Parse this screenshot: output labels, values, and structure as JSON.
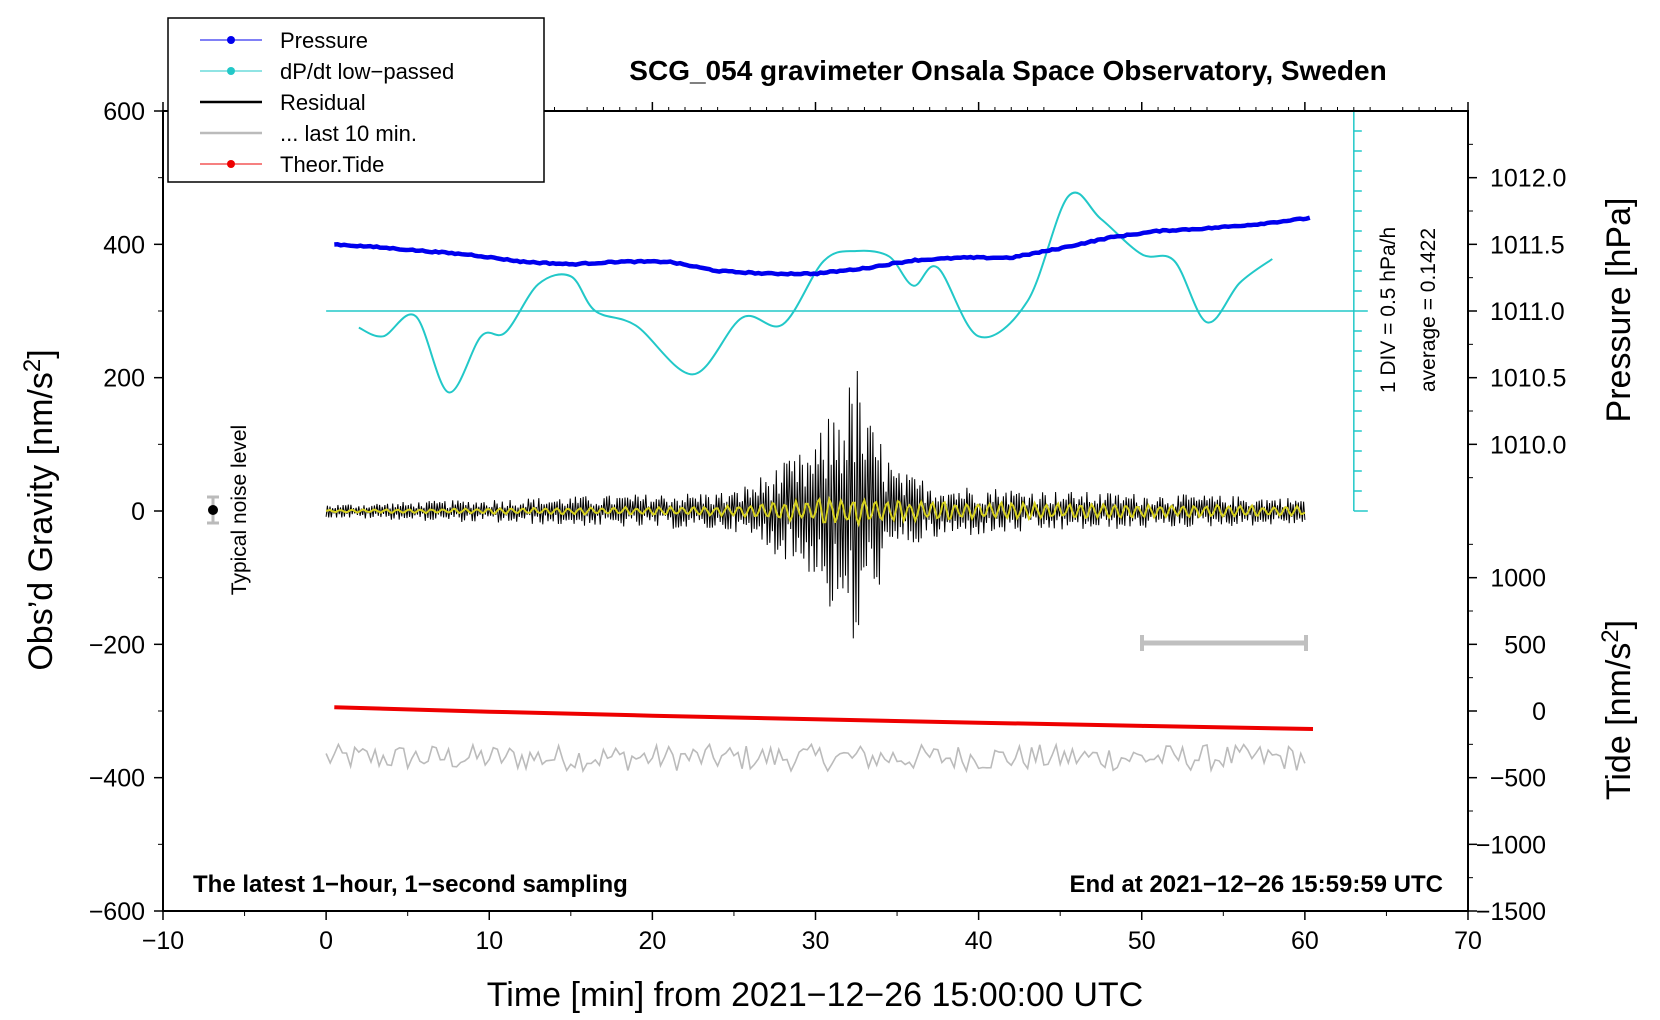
{
  "chart_data": {
    "type": "line",
    "title": "SCG_054 gravimeter Onsala Space Observatory, Sweden",
    "xlabel": "Time [min] from 2021−12−26 15:00:00 UTC",
    "ylabel_left_main": "Obs’d Gravity [nm/s",
    "ylabel_left_sup": "2",
    "ylabel_left_end": "]",
    "ylabel_right_top": "Pressure [hPa]",
    "ylabel_right_bottom_main": "Tide [nm/s",
    "ylabel_right_bottom_sup": "2",
    "ylabel_right_bottom_end": "]",
    "xlim": [
      -10,
      70
    ],
    "ylim": [
      -600,
      600
    ],
    "x_ticks": [
      -10,
      0,
      10,
      20,
      30,
      40,
      50,
      60,
      70
    ],
    "x_tick_labels": [
      "−10",
      "0",
      "10",
      "20",
      "30",
      "40",
      "50",
      "60",
      "70"
    ],
    "y_ticks": [
      -600,
      -400,
      -200,
      0,
      200,
      400,
      600
    ],
    "y_tick_labels": [
      "−600",
      "−400",
      "−200",
      "0",
      "200",
      "400",
      "600"
    ],
    "pressure_axis": {
      "ylim": [
        1009.5,
        1012.5
      ],
      "ticks": [
        1010.0,
        1010.5,
        1011.0,
        1011.5,
        1012.0
      ],
      "tick_labels": [
        "1010.0",
        "1010.5",
        "1011.0",
        "1011.5",
        "1012.0"
      ]
    },
    "tide_axis": {
      "ylim": [
        -1500,
        1500
      ],
      "ticks": [
        -1500,
        -1000,
        -500,
        0,
        500,
        1000
      ],
      "tick_labels": [
        "−1500",
        "−1000",
        "−500",
        "0",
        "500",
        "1000"
      ]
    },
    "legend": [
      {
        "name": "Pressure",
        "color": "#0000ee",
        "marker": "dot"
      },
      {
        "name": "dP/dt low−passed",
        "color": "#22c8c8",
        "marker": "dot"
      },
      {
        "name": "Residual",
        "color": "#000000",
        "marker": "none"
      },
      {
        "name": "... last 10 min.",
        "color": "#bbbbbb",
        "marker": "none"
      },
      {
        "name": "Theor.Tide",
        "color": "#ee0000",
        "marker": "dot"
      }
    ],
    "legend_position": "top-left",
    "series": [
      {
        "name": "Pressure",
        "axis": "pressure_hPa",
        "color": "#0000ee",
        "x": [
          0.5,
          3,
          6,
          9,
          12,
          15,
          18,
          21,
          24,
          27,
          30,
          33,
          36,
          39,
          42,
          45,
          48,
          51,
          54,
          57,
          60.5
        ],
        "y": [
          1011.5,
          1011.48,
          1011.45,
          1011.42,
          1011.37,
          1011.35,
          1011.37,
          1011.37,
          1011.3,
          1011.28,
          1011.28,
          1011.32,
          1011.38,
          1011.4,
          1011.4,
          1011.47,
          1011.55,
          1011.6,
          1011.62,
          1011.65,
          1011.7
        ]
      },
      {
        "name": "dP/dt low−passed",
        "axis": "gravity",
        "color": "#22c8c8",
        "x": [
          2,
          3.5,
          5.5,
          7.5,
          9.5,
          11,
          13,
          15,
          16.5,
          19,
          22.5,
          25.5,
          28,
          30.5,
          32.5,
          34.5,
          36,
          37.5,
          40,
          43,
          45.5,
          47.5,
          50,
          52,
          54,
          56,
          58
        ],
        "y": [
          275,
          262,
          292,
          178,
          262,
          268,
          340,
          352,
          300,
          278,
          205,
          290,
          280,
          375,
          390,
          382,
          338,
          365,
          262,
          315,
          472,
          438,
          385,
          375,
          283,
          342,
          378
        ]
      },
      {
        "name": "dP/dt reference (average)",
        "axis": "gravity",
        "color": "#22c8c8",
        "x": [
          0,
          63
        ],
        "y": [
          300,
          300
        ]
      },
      {
        "name": "Residual",
        "axis": "gravity",
        "color": "#000000",
        "x": [
          0,
          25,
          30,
          31,
          32,
          32.5,
          33,
          34,
          35,
          38,
          45,
          60
        ],
        "y_envelope": [
          10,
          30,
          100,
          160,
          190,
          230,
          150,
          110,
          60,
          40,
          30,
          20
        ]
      },
      {
        "name": "Residual (low−passed)",
        "axis": "gravity",
        "color": "#d7d21e",
        "x": [
          0,
          25,
          32,
          36,
          60
        ],
        "y_envelope": [
          2,
          8,
          25,
          15,
          8
        ]
      },
      {
        "name": "... last 10 min.",
        "axis": "gravity",
        "color": "#bbbbbb",
        "x": [
          0,
          60
        ],
        "y": [
          -370,
          -370
        ],
        "noise_amplitude": 20
      },
      {
        "name": "Theor.Tide",
        "axis": "tide",
        "color": "#ee0000",
        "x": [
          0.5,
          10,
          20,
          30,
          40,
          50,
          60.5
        ],
        "y": [
          28,
          -5,
          -35,
          -62,
          -88,
          -112,
          -135
        ]
      }
    ],
    "noise_marker": {
      "x": -7,
      "y": 0,
      "error": 20,
      "label": "Typical noise level"
    },
    "scale_bar": {
      "x_start": 50,
      "x_end": 60,
      "y": -200
    },
    "pressure_rate_scale": {
      "label_1": "1 DIV = 0.5 hPa/h",
      "label_2": "average = 0.1422"
    },
    "annotations": {
      "bottom_left": "The latest 1−hour, 1−second sampling",
      "bottom_right": "End at 2021−12−26 15:59:59 UTC"
    }
  }
}
